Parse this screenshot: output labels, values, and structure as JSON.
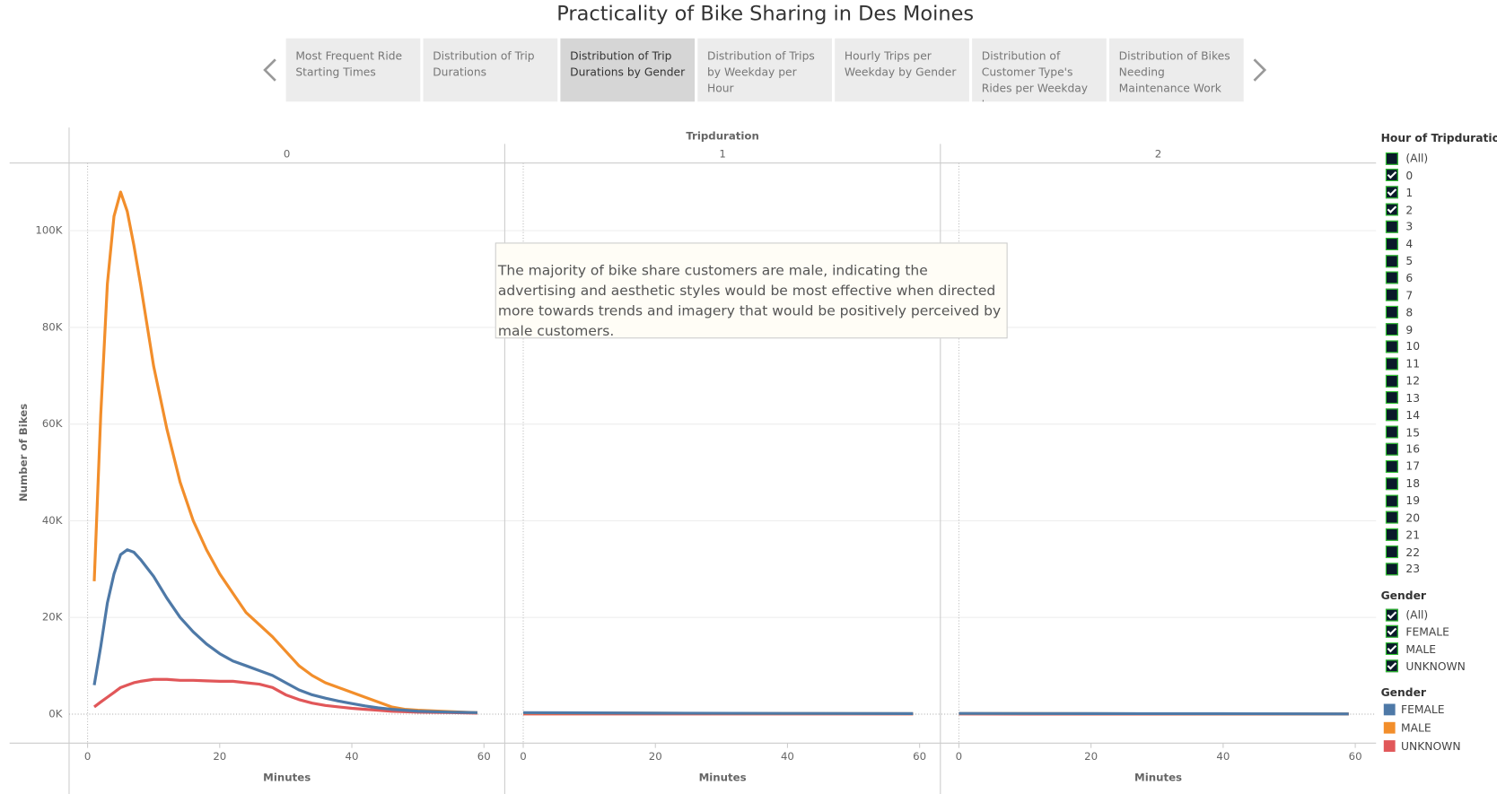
{
  "header": {
    "title": "Practicality of Bike Sharing in Des Moines"
  },
  "tabs": [
    {
      "label": "Most Frequent Ride Starting Times",
      "selected": false
    },
    {
      "label": "Distribution of Trip Durations",
      "selected": false
    },
    {
      "label": "Distribution of Trip Durations by Gender",
      "selected": true
    },
    {
      "label": "Distribution of Trips by Weekday per Hour",
      "selected": false
    },
    {
      "label": "Hourly Trips per Weekday by Gender",
      "selected": false
    },
    {
      "label": "Distribution of Customer Type's Rides per Weekday by",
      "selected": false
    },
    {
      "label": "Distribution of Bikes Needing Maintenance Work",
      "selected": false
    }
  ],
  "annotation": "The majority of bike share customers are male, indicating the advertising and aesthetic styles would be most effective when directed more towards trends and imagery that would be positively perceived by male customers.",
  "chart_data": {
    "type": "line",
    "facet_label": "Tripduration",
    "y_label": "Number of Bikes",
    "x_label": "Minutes",
    "ylim": [
      -6000,
      114000
    ],
    "yticks": [
      {
        "value": 0,
        "label": "0K"
      },
      {
        "value": 20000,
        "label": "20K"
      },
      {
        "value": 40000,
        "label": "40K"
      },
      {
        "value": 60000,
        "label": "60K"
      },
      {
        "value": 80000,
        "label": "80K"
      },
      {
        "value": 100000,
        "label": "100K"
      }
    ],
    "xlim": [
      -2.8,
      63
    ],
    "xticks": [
      0,
      20,
      40,
      60
    ],
    "grid": true,
    "panels": [
      {
        "title": "0",
        "x": [
          1,
          2,
          3,
          4,
          5,
          6,
          7,
          8,
          10,
          12,
          14,
          16,
          18,
          20,
          22,
          24,
          26,
          28,
          30,
          32,
          34,
          36,
          38,
          40,
          42,
          44,
          46,
          48,
          50,
          55,
          59
        ],
        "series": [
          {
            "name": "FEMALE",
            "color": "#4e79a7",
            "values": [
              6000,
              14000,
              23000,
              29000,
              33000,
              34000,
              33500,
              32000,
              28500,
              24000,
              20000,
              17000,
              14500,
              12500,
              11000,
              10000,
              9000,
              8000,
              6500,
              5000,
              4000,
              3300,
              2700,
              2200,
              1700,
              1300,
              1000,
              800,
              600,
              400,
              300
            ]
          },
          {
            "name": "MALE",
            "color": "#f28e2b",
            "values": [
              27500,
              62000,
              89000,
              103000,
              108000,
              104000,
              97000,
              89000,
              72000,
              59000,
              48000,
              40000,
              34000,
              29000,
              25000,
              21000,
              18500,
              16000,
              13000,
              10000,
              8000,
              6500,
              5500,
              4500,
              3500,
              2500,
              1500,
              1000,
              800,
              500,
              300
            ]
          },
          {
            "name": "UNKNOWN",
            "color": "#e15759",
            "values": [
              1500,
              2500,
              3500,
              4500,
              5500,
              6000,
              6500,
              6800,
              7200,
              7200,
              7000,
              7000,
              6900,
              6800,
              6800,
              6500,
              6200,
              5500,
              4000,
              3000,
              2300,
              1800,
              1500,
              1200,
              1000,
              800,
              600,
              500,
              400,
              300,
              200
            ]
          }
        ]
      },
      {
        "title": "1",
        "x": [
          0,
          20,
          40,
          59
        ],
        "series": [
          {
            "name": "FEMALE",
            "color": "#4e79a7",
            "values": [
              300,
              200,
              150,
              100
            ]
          },
          {
            "name": "MALE",
            "color": "#f28e2b",
            "values": [
              250,
              180,
              120,
              80
            ]
          },
          {
            "name": "UNKNOWN",
            "color": "#e15759",
            "values": [
              50,
              40,
              30,
              20
            ]
          }
        ]
      },
      {
        "title": "2",
        "x": [
          0,
          20,
          40,
          59
        ],
        "series": [
          {
            "name": "FEMALE",
            "color": "#4e79a7",
            "values": [
              150,
              100,
              80,
              50
            ]
          },
          {
            "name": "MALE",
            "color": "#f28e2b",
            "values": [
              120,
              90,
              60,
              40
            ]
          },
          {
            "name": "UNKNOWN",
            "color": "#e15759",
            "values": [
              20,
              15,
              10,
              5
            ]
          }
        ]
      }
    ]
  },
  "filters": {
    "hour": {
      "title": "Hour of Tripduration",
      "items": [
        {
          "label": "(All)",
          "checked": false
        },
        {
          "label": "0",
          "checked": true
        },
        {
          "label": "1",
          "checked": true
        },
        {
          "label": "2",
          "checked": true
        },
        {
          "label": "3",
          "checked": false
        },
        {
          "label": "4",
          "checked": false
        },
        {
          "label": "5",
          "checked": false
        },
        {
          "label": "6",
          "checked": false
        },
        {
          "label": "7",
          "checked": false
        },
        {
          "label": "8",
          "checked": false
        },
        {
          "label": "9",
          "checked": false
        },
        {
          "label": "10",
          "checked": false
        },
        {
          "label": "11",
          "checked": false
        },
        {
          "label": "12",
          "checked": false
        },
        {
          "label": "13",
          "checked": false
        },
        {
          "label": "14",
          "checked": false
        },
        {
          "label": "15",
          "checked": false
        },
        {
          "label": "16",
          "checked": false
        },
        {
          "label": "17",
          "checked": false
        },
        {
          "label": "18",
          "checked": false
        },
        {
          "label": "19",
          "checked": false
        },
        {
          "label": "20",
          "checked": false
        },
        {
          "label": "21",
          "checked": false
        },
        {
          "label": "22",
          "checked": false
        },
        {
          "label": "23",
          "checked": false
        }
      ]
    },
    "gender": {
      "title": "Gender",
      "items": [
        {
          "label": "(All)",
          "checked": true
        },
        {
          "label": "FEMALE",
          "checked": true
        },
        {
          "label": "MALE",
          "checked": true
        },
        {
          "label": "UNKNOWN",
          "checked": true
        }
      ]
    }
  },
  "legend": {
    "title": "Gender"
  }
}
